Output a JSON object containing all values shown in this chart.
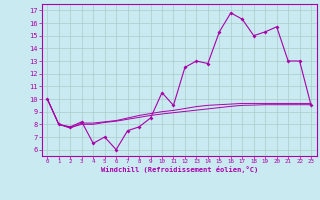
{
  "xlabel": "Windchill (Refroidissement éolien,°C)",
  "background_color": "#c8eaf0",
  "grid_color": "#aacccc",
  "line_color": "#aa00aa",
  "xlim": [
    -0.5,
    23.5
  ],
  "ylim": [
    5.5,
    17.5
  ],
  "xticks": [
    0,
    1,
    2,
    3,
    4,
    5,
    6,
    7,
    8,
    9,
    10,
    11,
    12,
    13,
    14,
    15,
    16,
    17,
    18,
    19,
    20,
    21,
    22,
    23
  ],
  "yticks": [
    6,
    7,
    8,
    9,
    10,
    11,
    12,
    13,
    14,
    15,
    16,
    17
  ],
  "hours": [
    0,
    1,
    2,
    3,
    4,
    5,
    6,
    7,
    8,
    9,
    10,
    11,
    12,
    13,
    14,
    15,
    16,
    17,
    18,
    19,
    20,
    21,
    22,
    23
  ],
  "temp_main": [
    10,
    8,
    7.8,
    8.2,
    6.5,
    7.0,
    6.0,
    7.5,
    7.8,
    8.5,
    10.5,
    9.5,
    12.5,
    13.0,
    12.8,
    15.3,
    16.8,
    16.3,
    15.0,
    15.3,
    15.7,
    13.0,
    13.0,
    9.5
  ],
  "temp_mid": [
    10,
    8,
    7.7,
    8.1,
    8.1,
    8.2,
    8.3,
    8.5,
    8.7,
    8.85,
    9.0,
    9.1,
    9.25,
    9.4,
    9.5,
    9.55,
    9.6,
    9.65,
    9.65,
    9.65,
    9.65,
    9.65,
    9.65,
    9.65
  ],
  "temp_low": [
    10,
    8,
    7.75,
    8.0,
    8.0,
    8.15,
    8.25,
    8.4,
    8.55,
    8.7,
    8.82,
    8.92,
    9.02,
    9.12,
    9.22,
    9.32,
    9.42,
    9.5,
    9.52,
    9.55,
    9.55,
    9.55,
    9.55,
    9.55
  ]
}
